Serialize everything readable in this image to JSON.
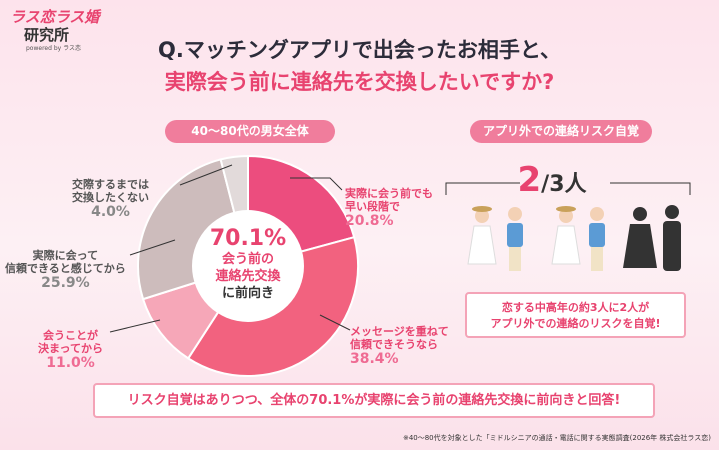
{
  "logo": {
    "brand": "ラス恋ラス婚",
    "lab": "研究所",
    "powered": "powered by ラス恋"
  },
  "header": {
    "line1": "Q.マッチングアプリで出会ったお相手と、",
    "line2": "実際会う前に連絡先を交換したいですか?"
  },
  "chart_data": {
    "type": "pie",
    "title": "40〜80代の男女全体",
    "categories": [
      "実際に会う前でも\n早い段階で",
      "メッセージを重ねて\n信頼できそうなら",
      "会うことが\n決まってから",
      "実際に会って\n信頼できると感じてから",
      "交際するまでは\n交換したくない"
    ],
    "values": [
      20.8,
      38.4,
      11.0,
      25.9,
      4.0
    ],
    "value_labels": [
      "20.8%",
      "38.4%",
      "11.0%",
      "25.9%",
      "4.0%"
    ],
    "colors": [
      "#ec4d7e",
      "#f2627f",
      "#f6a7b8",
      "#cdbcbc",
      "#e2dada"
    ],
    "center_label": {
      "value": "70.1%",
      "text": [
        "会う前の",
        "連絡先交換",
        "に前向き"
      ]
    }
  },
  "risk_panel": {
    "title": "アプリ外での連絡リスク自覚",
    "numerator": "2",
    "denominator": "/3人",
    "message": [
      "恋する中高年の約3人に2人が",
      "アプリ外での連絡のリスクを自覚!"
    ]
  },
  "banner": "リスク自覚はありつつ、全体の70.1%が実際に会う前の連絡先交換に前向きと回答!",
  "footnote": "※40〜80代を対象とした「ミドルシニアの通話・電話に関する実態調査(2026年 株式会社ラス恋)"
}
